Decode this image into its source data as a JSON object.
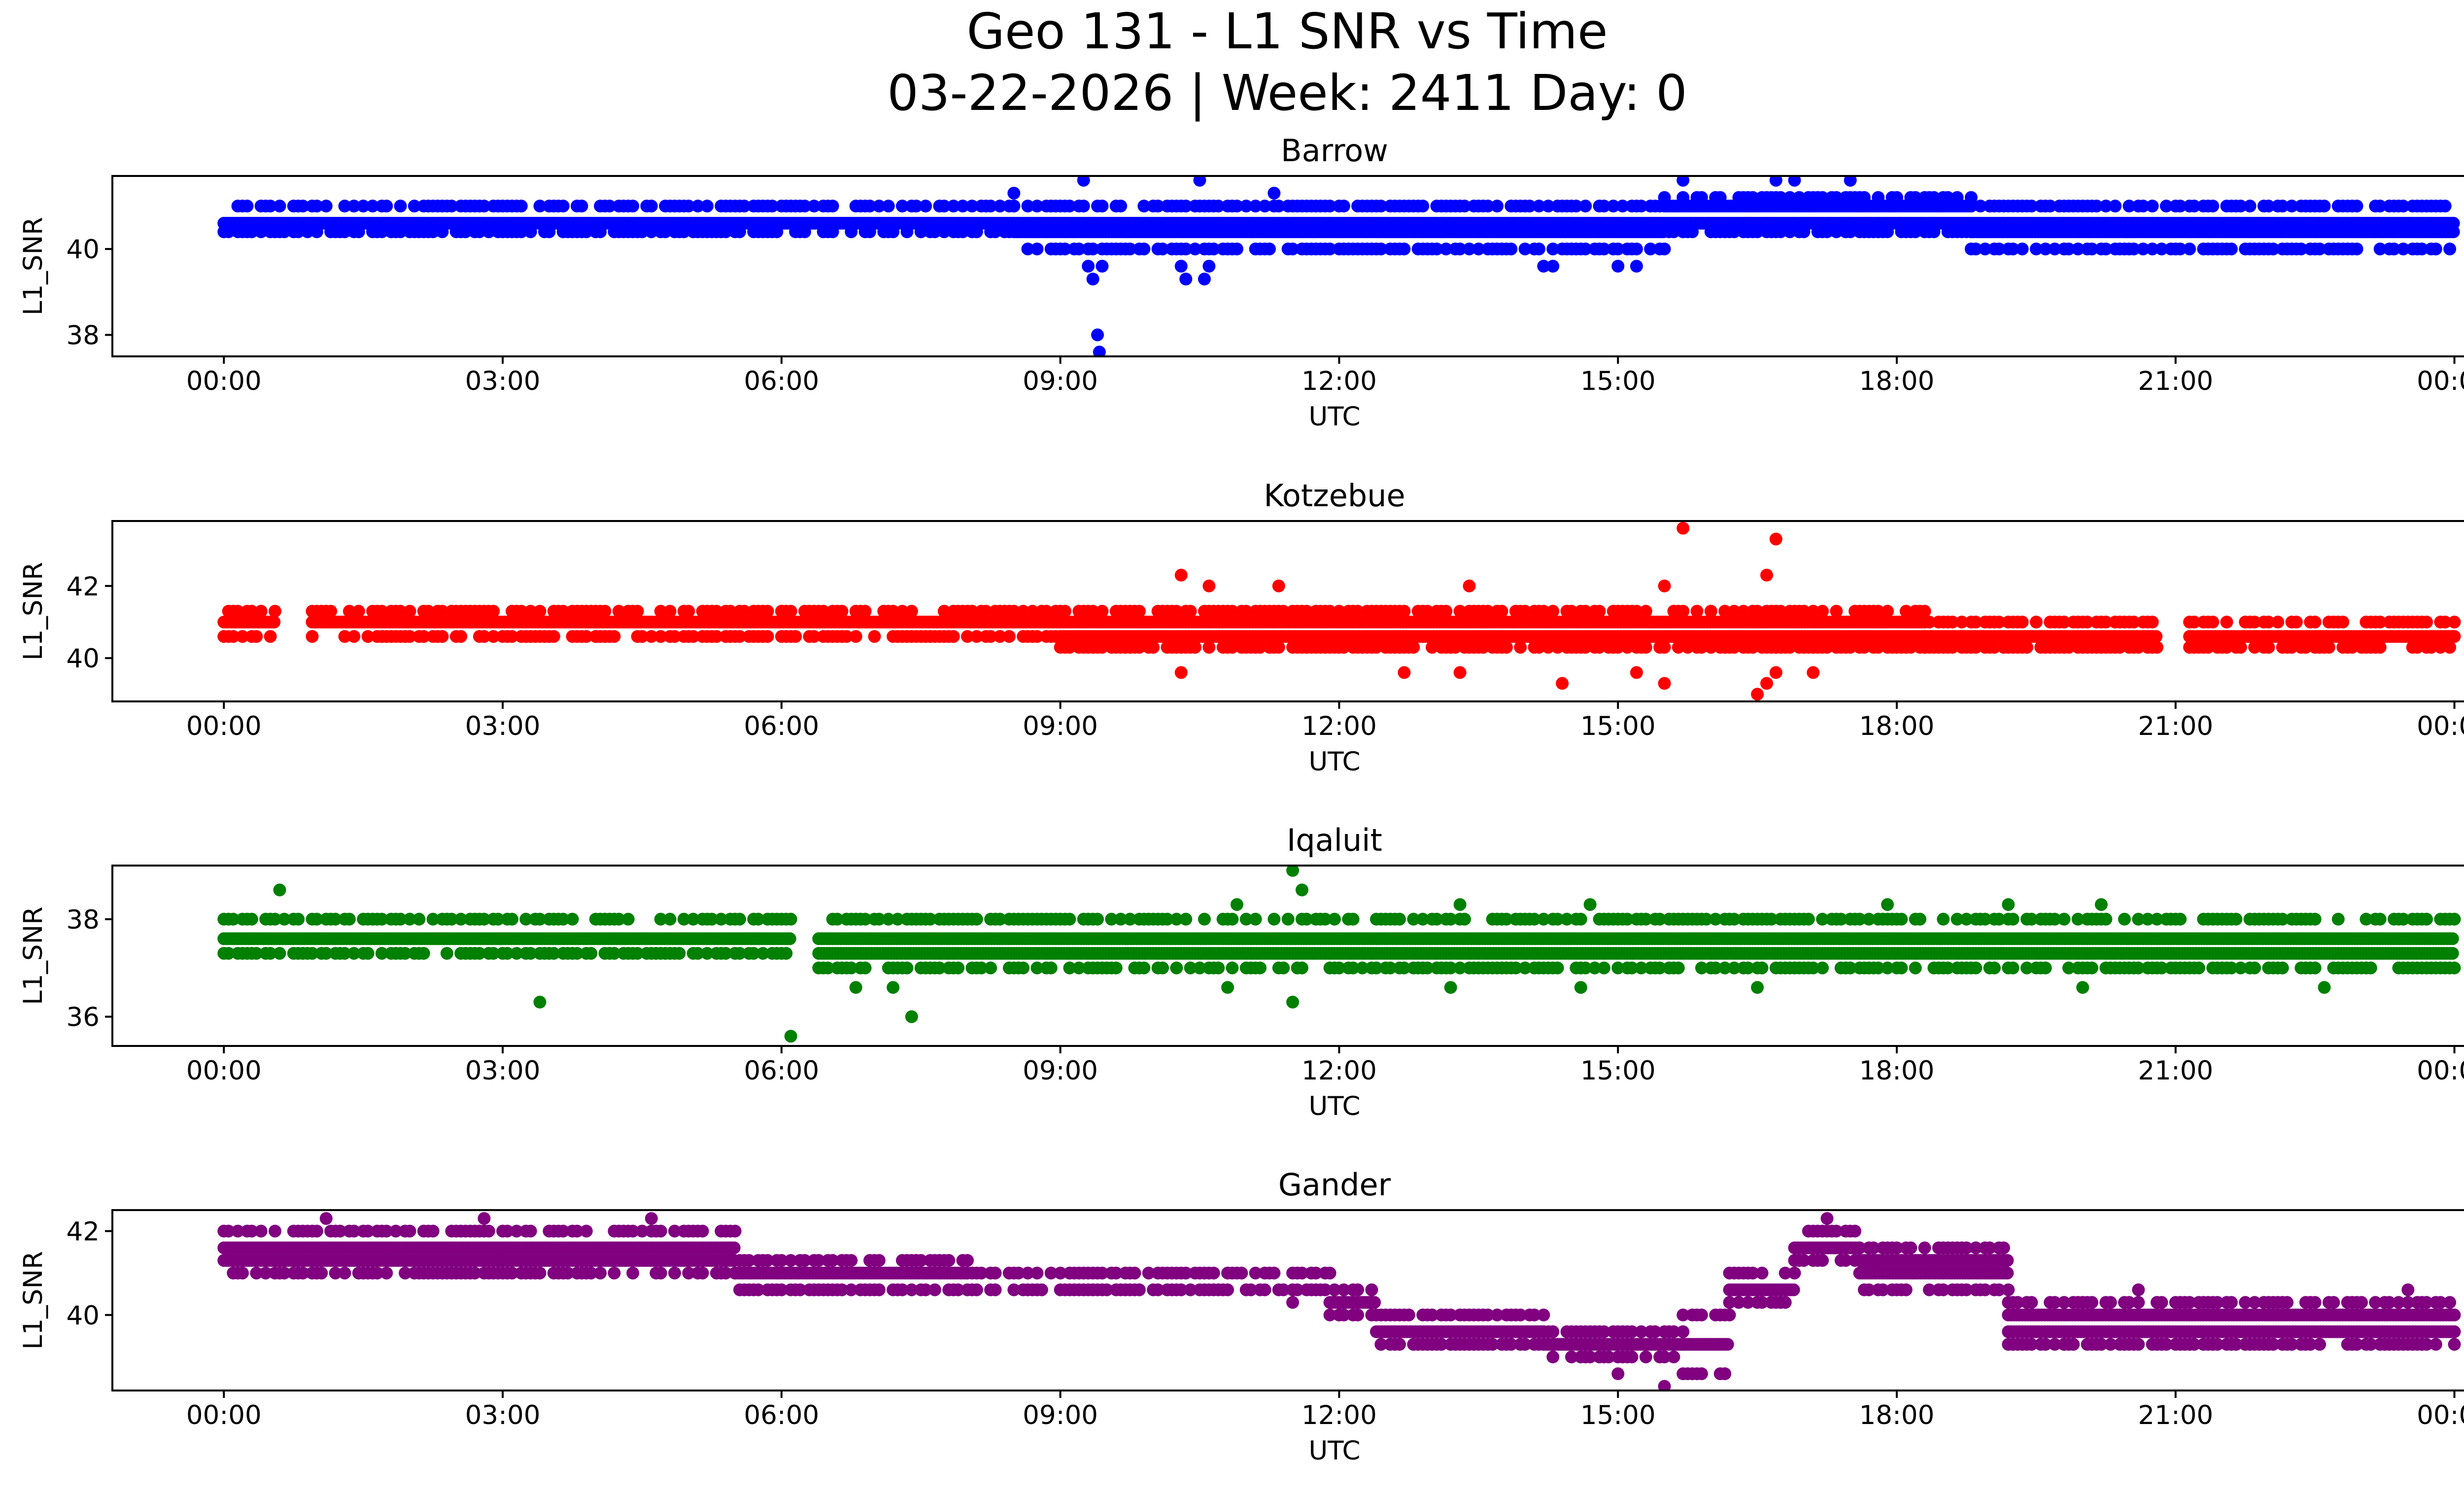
{
  "chart_data": {
    "type": "scatter",
    "title": "Geo 131 - L1 SNR vs Time",
    "subtitle": "03-22-2026 | Week: 2411 Day: 0",
    "shared_x": {
      "label": "UTC",
      "range_hours": [
        -1.2,
        25.1
      ],
      "tick_hours": [
        0,
        3,
        6,
        9,
        12,
        15,
        18,
        21,
        24
      ],
      "tick_labels": [
        "00:00",
        "03:00",
        "06:00",
        "09:00",
        "12:00",
        "15:00",
        "18:00",
        "21:00",
        "00:00"
      ]
    },
    "panels": [
      {
        "title": "Barrow",
        "ylabel": "L1_SNR",
        "color": "#0000ff",
        "ylim": [
          37.5,
          41.7
        ],
        "yticks": [
          38,
          40
        ],
        "bands": [
          {
            "t_start": 0.0,
            "t_end": 8.5,
            "levels": [
              40.4,
              40.6,
              41.0
            ],
            "gaps": []
          },
          {
            "t_start": 8.5,
            "t_end": 15.5,
            "levels": [
              40.0,
              40.4,
              40.6,
              41.0
            ],
            "gaps": []
          },
          {
            "t_start": 15.5,
            "t_end": 18.8,
            "levels": [
              40.4,
              40.6,
              41.0,
              41.2
            ],
            "gaps": []
          },
          {
            "t_start": 18.8,
            "t_end": 24.0,
            "levels": [
              40.0,
              40.4,
              40.6,
              41.0
            ],
            "gaps": []
          }
        ],
        "outliers": [
          {
            "t": 9.3,
            "v": 39.6
          },
          {
            "t": 9.35,
            "v": 39.3
          },
          {
            "t": 9.45,
            "v": 39.6
          },
          {
            "t": 9.25,
            "v": 41.6
          },
          {
            "t": 9.4,
            "v": 38.0
          },
          {
            "t": 9.42,
            "v": 37.6
          },
          {
            "t": 10.3,
            "v": 39.6
          },
          {
            "t": 10.35,
            "v": 39.3
          },
          {
            "t": 10.55,
            "v": 39.3
          },
          {
            "t": 10.6,
            "v": 39.6
          },
          {
            "t": 10.5,
            "v": 41.6
          },
          {
            "t": 8.5,
            "v": 41.3
          },
          {
            "t": 11.3,
            "v": 41.3
          },
          {
            "t": 14.2,
            "v": 39.6
          },
          {
            "t": 14.3,
            "v": 39.6
          },
          {
            "t": 15.0,
            "v": 39.6
          },
          {
            "t": 15.2,
            "v": 39.6
          },
          {
            "t": 15.7,
            "v": 41.6
          },
          {
            "t": 16.7,
            "v": 41.6
          },
          {
            "t": 16.9,
            "v": 41.6
          },
          {
            "t": 17.5,
            "v": 41.6
          }
        ]
      },
      {
        "title": "Kotzebue",
        "ylabel": "L1_SNR",
        "color": "#ff0000",
        "ylim": [
          38.8,
          43.8
        ],
        "yticks": [
          40,
          42
        ],
        "bands": [
          {
            "t_start": 0.0,
            "t_end": 0.55,
            "levels": [
              40.6,
              41.0,
              41.3
            ],
            "gaps": []
          },
          {
            "t_start": 0.95,
            "t_end": 9.0,
            "levels": [
              40.6,
              41.0,
              41.3
            ],
            "gaps": []
          },
          {
            "t_start": 9.0,
            "t_end": 18.3,
            "levels": [
              40.3,
              40.6,
              41.0,
              41.3
            ],
            "gaps": []
          },
          {
            "t_start": 18.3,
            "t_end": 20.8,
            "levels": [
              40.3,
              40.6,
              41.0
            ],
            "gaps": []
          },
          {
            "t_start": 21.15,
            "t_end": 24.0,
            "levels": [
              40.3,
              40.6,
              41.0
            ],
            "gaps": []
          }
        ],
        "outliers": [
          {
            "t": 10.3,
            "v": 42.3
          },
          {
            "t": 10.6,
            "v": 42.0
          },
          {
            "t": 11.35,
            "v": 42.0
          },
          {
            "t": 13.4,
            "v": 42.0
          },
          {
            "t": 15.7,
            "v": 43.6
          },
          {
            "t": 16.7,
            "v": 43.3
          },
          {
            "t": 16.6,
            "v": 42.3
          },
          {
            "t": 15.5,
            "v": 42.0
          },
          {
            "t": 10.3,
            "v": 39.6
          },
          {
            "t": 12.7,
            "v": 39.6
          },
          {
            "t": 13.3,
            "v": 39.6
          },
          {
            "t": 14.4,
            "v": 39.3
          },
          {
            "t": 15.2,
            "v": 39.6
          },
          {
            "t": 15.5,
            "v": 39.3
          },
          {
            "t": 16.5,
            "v": 39.0
          },
          {
            "t": 16.6,
            "v": 39.3
          },
          {
            "t": 16.7,
            "v": 39.6
          },
          {
            "t": 17.1,
            "v": 39.6
          }
        ]
      },
      {
        "title": "Iqaluit",
        "ylabel": "L1_SNR",
        "color": "#008000",
        "ylim": [
          35.4,
          39.1
        ],
        "yticks": [
          36,
          38
        ],
        "bands": [
          {
            "t_start": 0.0,
            "t_end": 6.1,
            "levels": [
              37.3,
              37.6,
              38.0
            ],
            "gaps": []
          },
          {
            "t_start": 6.4,
            "t_end": 24.0,
            "levels": [
              37.0,
              37.3,
              37.6,
              38.0
            ],
            "gaps": []
          }
        ],
        "outliers": [
          {
            "t": 0.6,
            "v": 38.6
          },
          {
            "t": 3.4,
            "v": 36.3
          },
          {
            "t": 6.1,
            "v": 35.6
          },
          {
            "t": 7.4,
            "v": 36.0
          },
          {
            "t": 11.5,
            "v": 39.0
          },
          {
            "t": 11.6,
            "v": 38.6
          },
          {
            "t": 11.5,
            "v": 36.3
          },
          {
            "t": 10.9,
            "v": 38.3
          },
          {
            "t": 13.3,
            "v": 38.3
          },
          {
            "t": 14.7,
            "v": 38.3
          },
          {
            "t": 17.9,
            "v": 38.3
          },
          {
            "t": 19.2,
            "v": 38.3
          },
          {
            "t": 20.2,
            "v": 38.3
          },
          {
            "t": 6.8,
            "v": 36.6
          },
          {
            "t": 7.2,
            "v": 36.6
          },
          {
            "t": 10.8,
            "v": 36.6
          },
          {
            "t": 13.2,
            "v": 36.6
          },
          {
            "t": 14.6,
            "v": 36.6
          },
          {
            "t": 16.5,
            "v": 36.6
          },
          {
            "t": 20.0,
            "v": 36.6
          },
          {
            "t": 22.6,
            "v": 36.6
          }
        ]
      },
      {
        "title": "Gander",
        "ylabel": "L1_SNR",
        "color": "#800080",
        "ylim": [
          38.2,
          42.5
        ],
        "yticks": [
          40,
          42
        ],
        "bands": [
          {
            "t_start": 0.0,
            "t_end": 5.5,
            "levels": [
              41.0,
              41.3,
              41.6,
              42.0
            ],
            "gaps": []
          },
          {
            "t_start": 5.5,
            "t_end": 8.0,
            "levels": [
              40.6,
              41.0,
              41.3
            ],
            "gaps": []
          },
          {
            "t_start": 8.0,
            "t_end": 11.9,
            "levels": [
              40.6,
              41.0
            ],
            "gaps": []
          },
          {
            "t_start": 11.9,
            "t_end": 12.4,
            "levels": [
              40.0,
              40.3,
              40.6
            ],
            "gaps": []
          },
          {
            "t_start": 12.4,
            "t_end": 14.2,
            "levels": [
              39.3,
              39.6,
              40.0
            ],
            "gaps": []
          },
          {
            "t_start": 14.2,
            "t_end": 15.7,
            "levels": [
              39.0,
              39.3,
              39.6
            ],
            "gaps": []
          },
          {
            "t_start": 15.7,
            "t_end": 16.2,
            "levels": [
              38.6,
              39.3,
              40.0
            ],
            "gaps": []
          },
          {
            "t_start": 16.2,
            "t_end": 16.9,
            "levels": [
              40.3,
              40.6,
              41.0
            ],
            "gaps": []
          },
          {
            "t_start": 16.9,
            "t_end": 17.6,
            "levels": [
              41.3,
              41.6,
              42.0
            ],
            "gaps": []
          },
          {
            "t_start": 17.6,
            "t_end": 19.2,
            "levels": [
              40.6,
              41.0,
              41.3,
              41.6
            ],
            "gaps": []
          },
          {
            "t_start": 19.2,
            "t_end": 24.0,
            "levels": [
              39.3,
              39.6,
              40.0,
              40.3
            ],
            "gaps": []
          }
        ],
        "outliers": [
          {
            "t": 1.1,
            "v": 42.3
          },
          {
            "t": 2.8,
            "v": 42.3
          },
          {
            "t": 4.6,
            "v": 42.3
          },
          {
            "t": 17.25,
            "v": 42.3
          },
          {
            "t": 15.5,
            "v": 38.3
          },
          {
            "t": 15.0,
            "v": 38.6
          },
          {
            "t": 11.5,
            "v": 40.3
          },
          {
            "t": 12.0,
            "v": 40.0
          },
          {
            "t": 23.5,
            "v": 40.6
          },
          {
            "t": 20.6,
            "v": 40.6
          }
        ]
      }
    ]
  }
}
